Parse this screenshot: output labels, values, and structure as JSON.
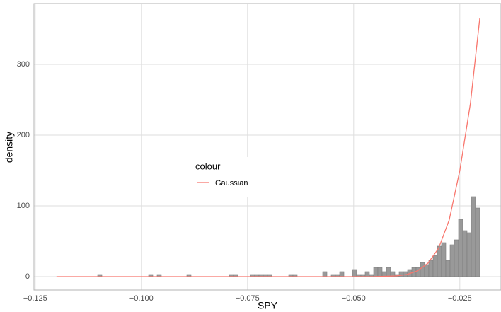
{
  "chart_data": {
    "type": "histogram",
    "x_label": "SPY",
    "y_label": "density",
    "bin_start": -0.1103,
    "bin_width": 0.001,
    "counts": [
      3,
      0,
      0,
      0,
      0,
      0,
      0,
      0,
      0,
      0,
      0,
      0,
      3,
      0,
      3,
      0,
      0,
      0,
      0,
      0,
      0,
      3,
      0,
      0,
      0,
      0,
      0,
      0,
      0,
      0,
      0,
      3,
      3,
      0,
      0,
      0,
      3,
      3,
      3,
      3,
      3,
      0,
      0,
      0,
      0,
      3,
      3,
      0,
      0,
      0,
      0,
      0,
      0,
      7,
      0,
      3,
      3,
      7,
      0,
      0,
      10,
      3,
      3,
      7,
      3,
      13,
      13,
      7,
      13,
      7,
      3,
      7,
      7,
      10,
      13,
      13,
      20,
      17,
      23,
      30,
      43,
      48,
      23,
      45,
      52,
      81,
      65,
      62,
      113,
      97
    ],
    "bar_color": "#999999",
    "line": {
      "name": "Gaussian",
      "color": "#f8766d",
      "x": [
        -0.12,
        -0.1,
        -0.08,
        -0.06,
        -0.05,
        -0.045,
        -0.04,
        -0.0375,
        -0.035,
        -0.0325,
        -0.03,
        -0.0275,
        -0.025,
        -0.0225,
        -0.0203
      ],
      "values": [
        0,
        0,
        0,
        0,
        0.01,
        0.1,
        1,
        3,
        8,
        19,
        40,
        80,
        150,
        245,
        365
      ]
    },
    "legend_title": "colour",
    "xlim": [
      -0.1253,
      -0.0153
    ],
    "ylim": [
      -19,
      386
    ],
    "xticks": [
      {
        "value": -0.125,
        "label": "−0.125"
      },
      {
        "value": -0.1,
        "label": "−0.100"
      },
      {
        "value": -0.075,
        "label": "−0.075"
      },
      {
        "value": -0.05,
        "label": "−0.050"
      },
      {
        "value": -0.025,
        "label": "−0.025"
      }
    ],
    "yticks": [
      0,
      100,
      200,
      300
    ],
    "grid": true
  }
}
